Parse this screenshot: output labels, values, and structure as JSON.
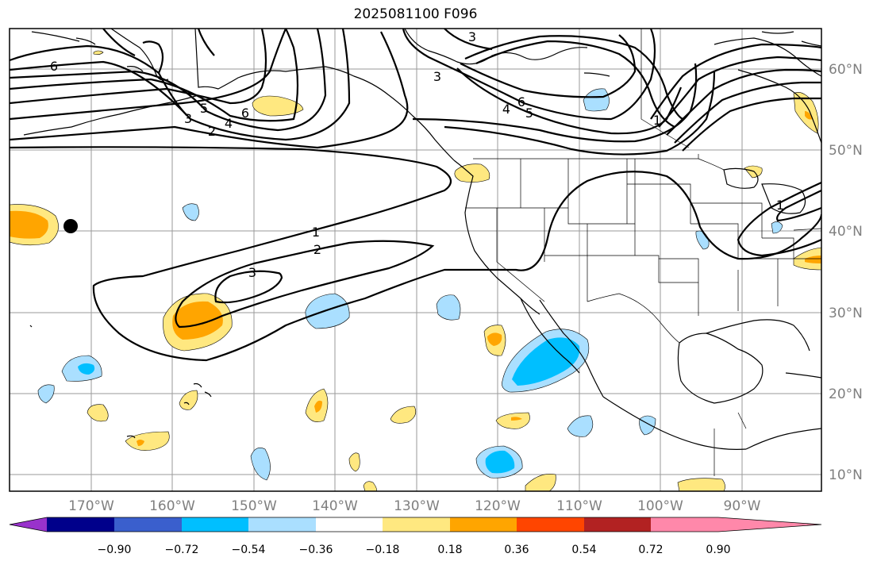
{
  "title": "2025081100 F096",
  "map": {
    "lon_labels": [
      "170°W",
      "160°W",
      "150°W",
      "140°W",
      "130°W",
      "120°W",
      "110°W",
      "100°W",
      "90°W"
    ],
    "lat_labels": [
      "60°N",
      "50°N",
      "40°N",
      "30°N",
      "20°N",
      "10°N"
    ],
    "contour_labels": [
      "6",
      "5",
      "3",
      "4",
      "2",
      "6",
      "3",
      "3",
      "6",
      "4",
      "5",
      "1",
      "1",
      "2",
      "3",
      "1"
    ],
    "colors": {
      "lightblue": "#aadfff",
      "blue": "#00bfff",
      "yellow": "#ffe880",
      "orange": "#ffa500",
      "marker": "#000000"
    }
  },
  "colorbar": {
    "colors": [
      "#9932cc",
      "#00008b",
      "#3a5fcd",
      "#00bfff",
      "#aadfff",
      "#ffffff",
      "#ffe880",
      "#ffa500",
      "#ff4500",
      "#b22222",
      "#ff88aa"
    ],
    "tick_labels": [
      "−0.90",
      "−0.72",
      "−0.54",
      "−0.36",
      "−0.18",
      "0.18",
      "0.36",
      "0.54",
      "0.72",
      "0.90"
    ]
  }
}
